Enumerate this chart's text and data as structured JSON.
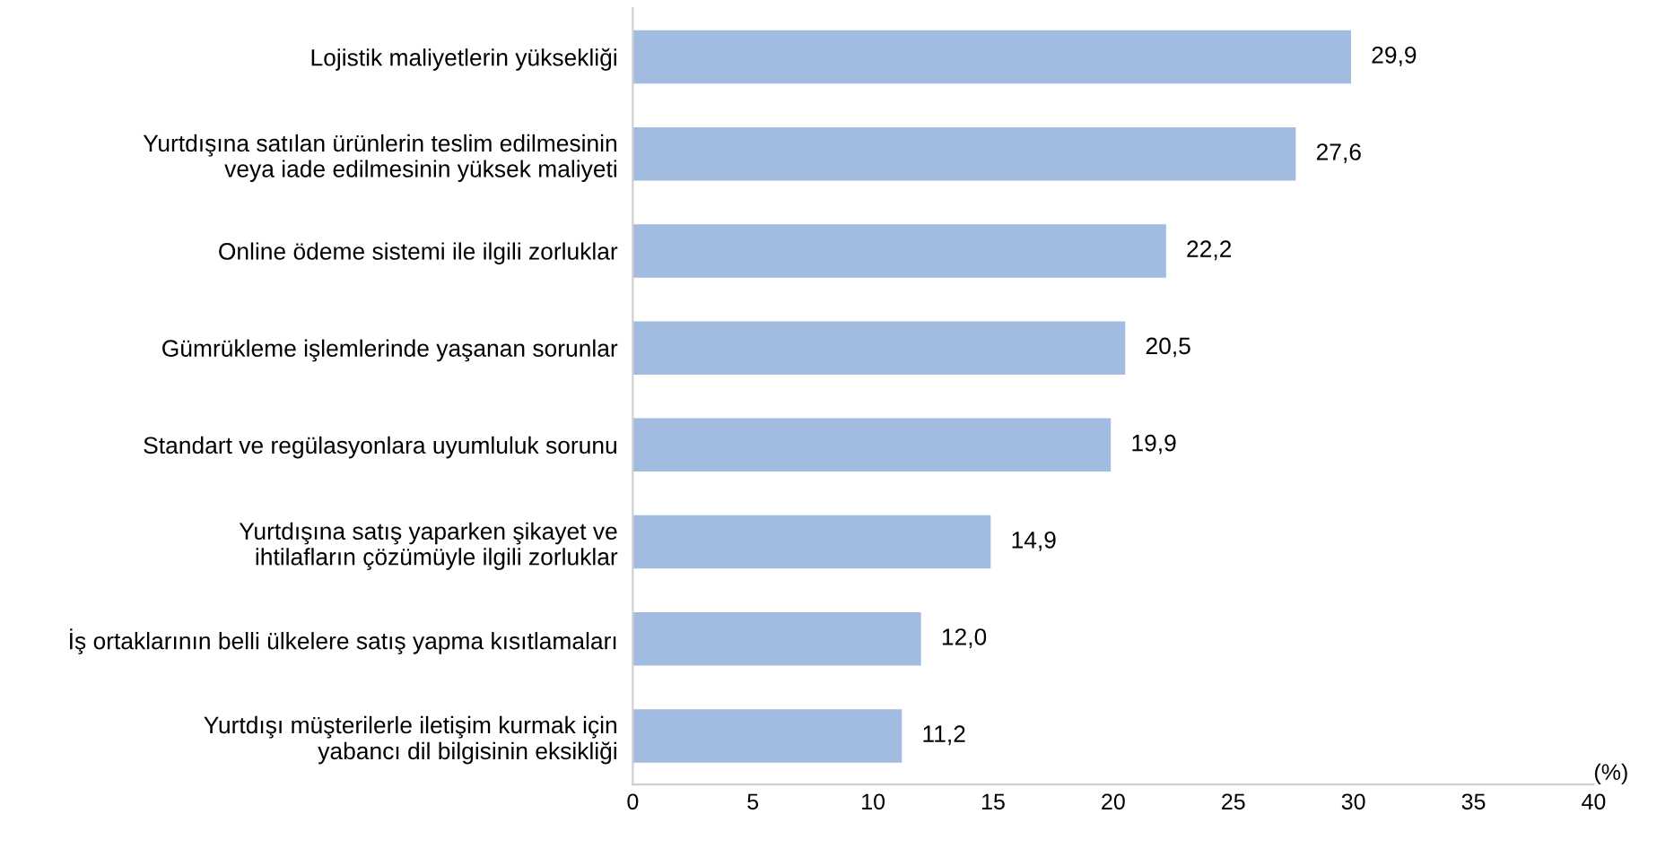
{
  "chart_data": {
    "type": "bar",
    "orientation": "horizontal",
    "categories": [
      "Lojistik maliyetlerin yüksekliği",
      "Yurtdışına satılan ürünlerin teslim edilmesinin\nveya iade edilmesinin yüksek maliyeti",
      "Online ödeme sistemi ile ilgili zorluklar",
      "Gümrükleme işlemlerinde yaşanan sorunlar",
      "Standart ve regülasyonlara uyumluluk sorunu",
      "Yurtdışına satış yaparken şikayet ve\nihtilafların çözümüyle ilgili zorluklar",
      "İş ortaklarının belli ülkelere satış yapma kısıtlamaları",
      "Yurtdışı müşterilerle iletişim kurmak için\nyabancı dil bilgisinin eksikliği"
    ],
    "values": [
      29.9,
      27.6,
      22.2,
      20.5,
      19.9,
      14.9,
      12.0,
      11.2
    ],
    "value_labels": [
      "29,9",
      "27,6",
      "22,2",
      "20,5",
      "19,9",
      "14,9",
      "12,0",
      "11,2"
    ],
    "color": "#a1bbe1",
    "xlim": [
      0,
      40
    ],
    "xticks": [
      0,
      5,
      10,
      15,
      20,
      25,
      30,
      35,
      40
    ],
    "grid": false,
    "annotations": [
      "(%)"
    ]
  }
}
